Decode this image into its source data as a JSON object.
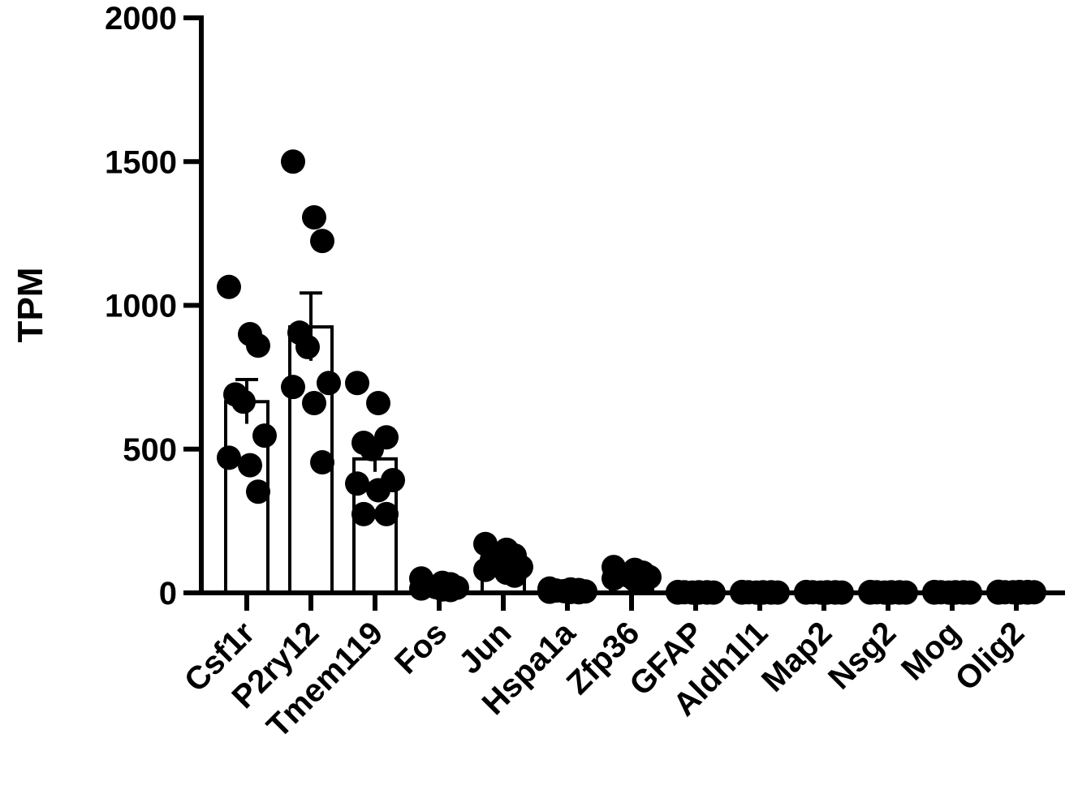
{
  "chart_data": {
    "type": "bar",
    "title": "",
    "xlabel": "",
    "ylabel": "TPM",
    "ylim": [
      0,
      2000
    ],
    "yticks": [
      0,
      500,
      1000,
      1500,
      2000
    ],
    "grid": false,
    "bar_fill": "#ffffff",
    "mark_color": "#000000",
    "categories": [
      "Csf1r",
      "P2ry12",
      "Tmem119",
      "Fos",
      "Jun",
      "Hspa1a",
      "Zfp36",
      "GFAP",
      "Aldh1l1",
      "Map2",
      "Nsg2",
      "Mog",
      "Olig2"
    ],
    "means": [
      665,
      925,
      466,
      28,
      110,
      8,
      62,
      2,
      2,
      2,
      2,
      2,
      3
    ],
    "sem": [
      77,
      118,
      45,
      6,
      12,
      2,
      6,
      0.5,
      0.5,
      0.5,
      0.5,
      0.5,
      0.5
    ],
    "points": [
      [
        1064,
        900,
        860,
        690,
        665,
        547,
        470,
        444,
        352
      ],
      [
        1500,
        1306,
        1224,
        905,
        855,
        730,
        716,
        660,
        454
      ],
      [
        730,
        660,
        541,
        522,
        500,
        392,
        380,
        357,
        274,
        274
      ],
      [
        50,
        35,
        30,
        25,
        20,
        18,
        15,
        12,
        10
      ],
      [
        170,
        150,
        130,
        115,
        100,
        90,
        80,
        70,
        60
      ],
      [
        15,
        12,
        10,
        8,
        6,
        5,
        4,
        3,
        2
      ],
      [
        90,
        80,
        70,
        65,
        60,
        55,
        50,
        45,
        40
      ],
      [
        3,
        2,
        2,
        2,
        1,
        1,
        1,
        1,
        1
      ],
      [
        3,
        2,
        2,
        2,
        1,
        1,
        1,
        1,
        1
      ],
      [
        3,
        2,
        2,
        2,
        1,
        1,
        1,
        1,
        1
      ],
      [
        3,
        2,
        2,
        2,
        1,
        1,
        1,
        1,
        1
      ],
      [
        3,
        2,
        2,
        2,
        1,
        1,
        1,
        1,
        1
      ],
      [
        4,
        3,
        3,
        2,
        2,
        2,
        1,
        1,
        1
      ]
    ]
  }
}
